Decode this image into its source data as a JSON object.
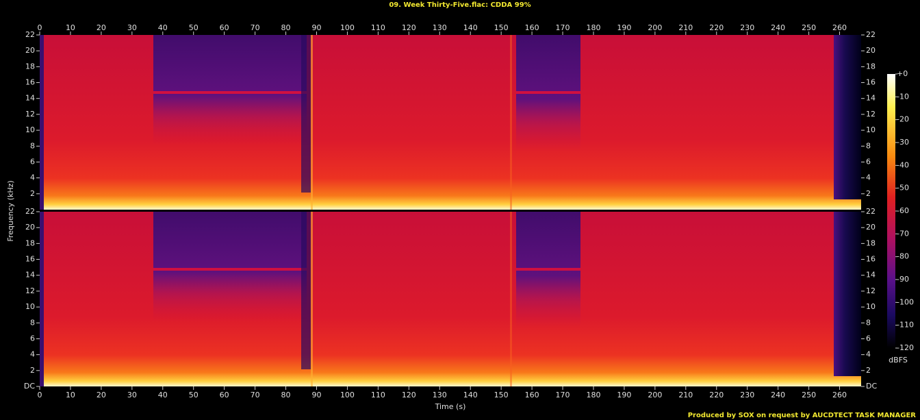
{
  "chart_data": {
    "type": "spectrogram",
    "title": "09. Week Thirty-Five.flac: CDDA 99%",
    "credit": "Produced by SOX on request by AUCDTECT TASK MANAGER",
    "x_label": "Time (s)",
    "y_label": "Frequency (kHz)",
    "xlim": [
      0,
      267
    ],
    "xticks": [
      0,
      10,
      20,
      30,
      40,
      50,
      60,
      70,
      80,
      90,
      100,
      110,
      120,
      130,
      140,
      150,
      160,
      170,
      180,
      190,
      200,
      210,
      220,
      230,
      240,
      250,
      260
    ],
    "channels": [
      {
        "ylim": [
          0,
          22
        ],
        "yticks": [
          2,
          4,
          6,
          8,
          10,
          12,
          14,
          16,
          18,
          20,
          22
        ]
      },
      {
        "ylim": [
          0,
          22
        ],
        "yticks": [
          {
            "value": 0,
            "label": "DC"
          },
          2,
          4,
          6,
          8,
          10,
          12,
          14,
          16,
          18,
          20,
          22
        ]
      }
    ],
    "colorbar": {
      "label": "dBFS",
      "lim": [
        -120,
        0
      ],
      "ticks": [
        {
          "value": 0,
          "label": "+0"
        },
        -10,
        -20,
        -30,
        -40,
        -50,
        -60,
        -70,
        -80,
        -90,
        -100,
        -110,
        -120
      ]
    }
  }
}
